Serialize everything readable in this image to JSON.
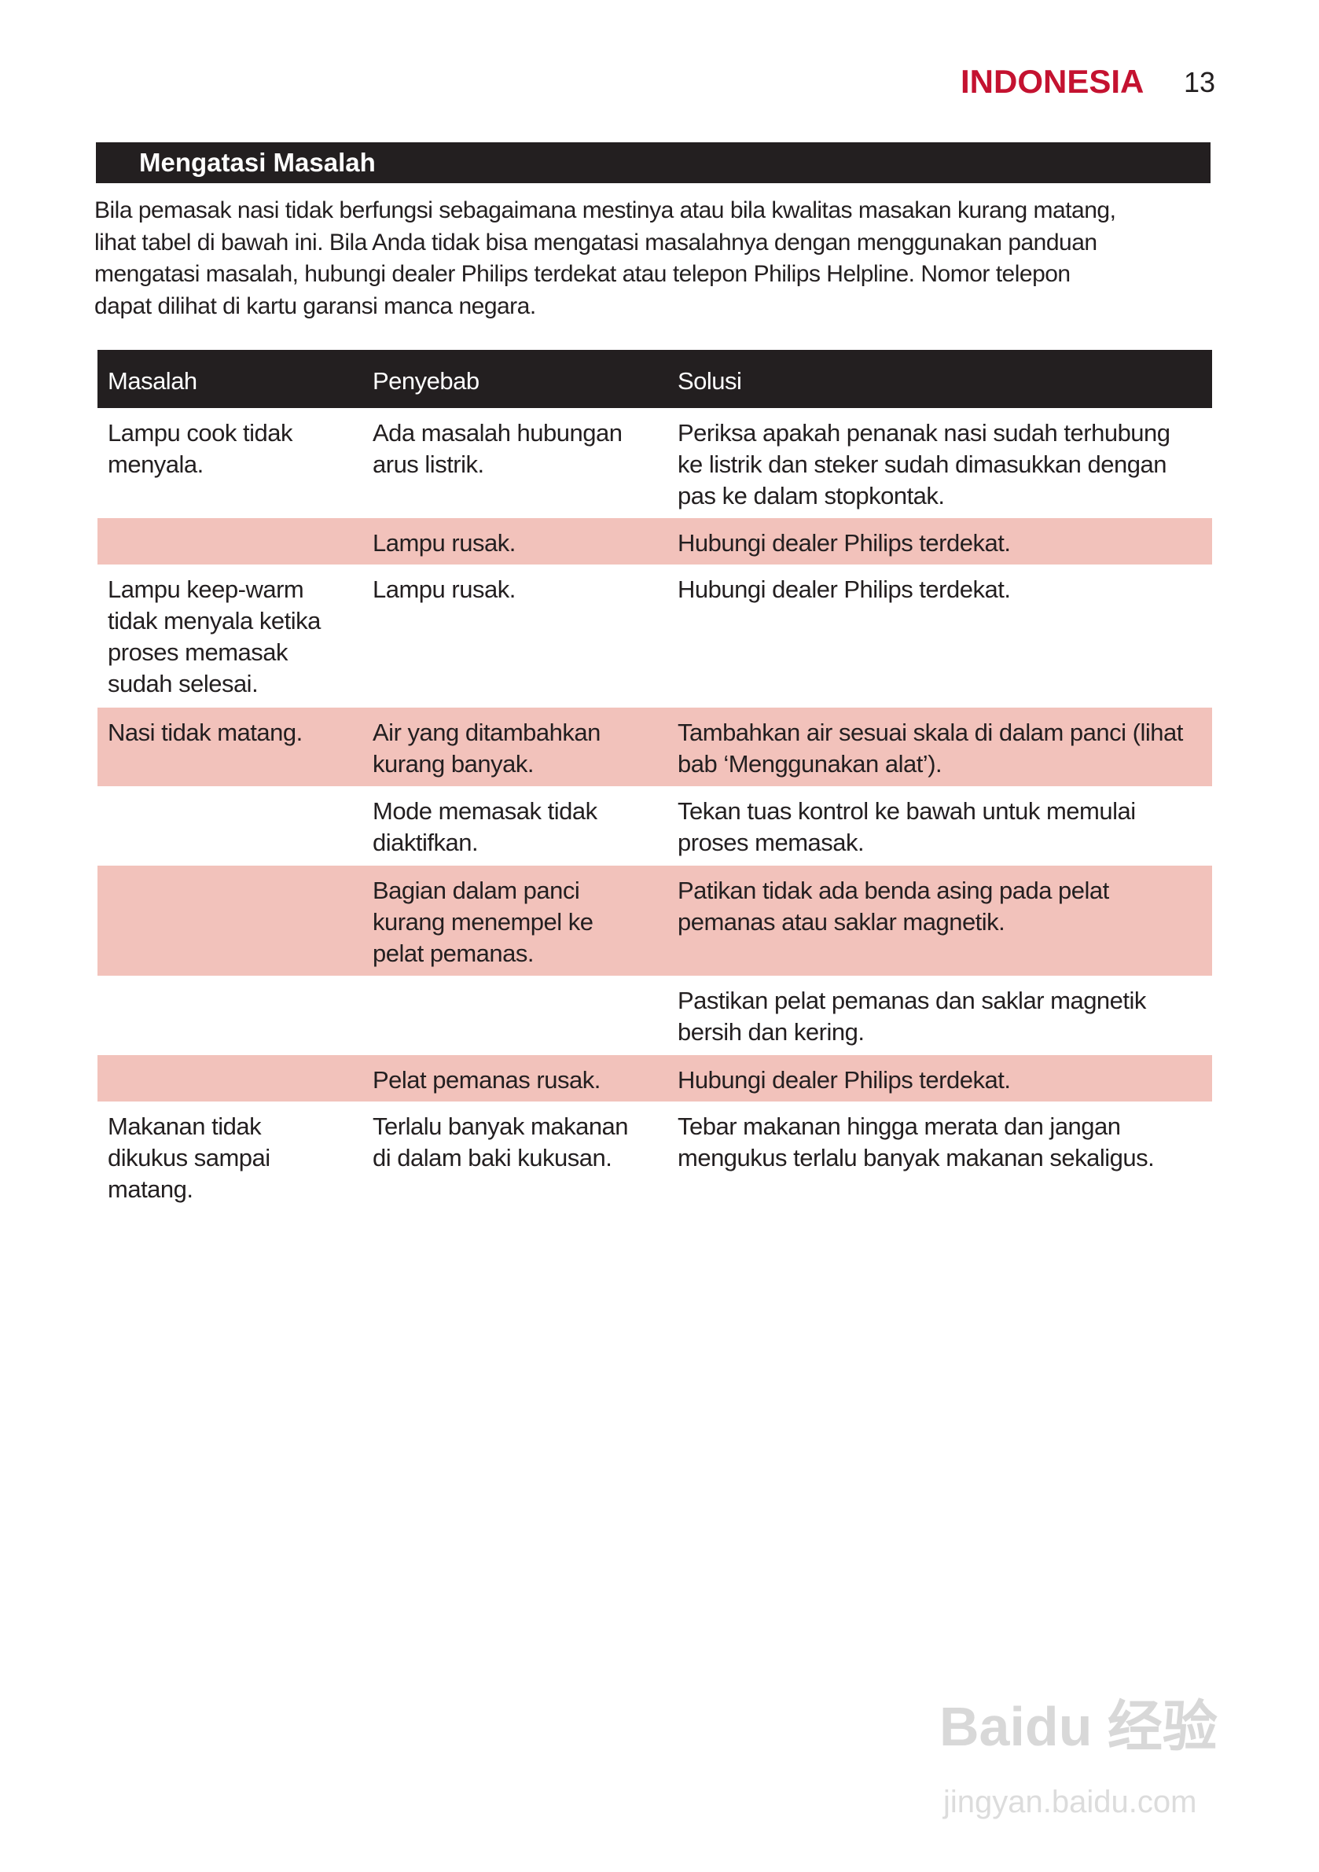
{
  "header": {
    "language": "INDONESIA",
    "page_number": "13"
  },
  "section": {
    "title": "Mengatasi Masalah",
    "intro": "Bila pemasak nasi tidak berfungsi sebagaimana mestinya atau bila kwalitas masakan kurang matang,\nlihat tabel di bawah ini. Bila Anda tidak bisa mengatasi masalahnya dengan menggunakan panduan\nmengatasi masalah, hubungi dealer Philips terdekat atau telepon Philips Helpline. Nomor telepon\ndapat dilihat di kartu garansi manca negara."
  },
  "table": {
    "headers": [
      "Masalah",
      "Penyebab",
      "Solusi"
    ],
    "rows": [
      {
        "masalah": "Lampu cook tidak\nmenyala.",
        "penyebab": "Ada masalah hubungan\narus listrik.",
        "solusi": "Periksa apakah penanak nasi sudah terhubung\nke listrik dan steker sudah dimasukkan dengan\npas ke dalam stopkontak."
      },
      {
        "masalah": "",
        "penyebab": "Lampu rusak.",
        "solusi": "Hubungi dealer Philips terdekat."
      },
      {
        "masalah": "Lampu keep-warm\ntidak menyala ketika\nproses memasak\nsudah selesai.",
        "penyebab": "Lampu rusak.",
        "solusi": "Hubungi dealer Philips terdekat."
      },
      {
        "masalah": "Nasi tidak matang.",
        "penyebab": "Air yang ditambahkan\nkurang banyak.",
        "solusi": "Tambahkan air sesuai skala di dalam panci (lihat\nbab ‘Menggunakan alat’)."
      },
      {
        "masalah": "",
        "penyebab": "Mode memasak tidak\ndiaktifkan.",
        "solusi": "Tekan tuas kontrol ke bawah untuk memulai\nproses memasak."
      },
      {
        "masalah": "",
        "penyebab": "Bagian dalam panci\nkurang menempel ke\npelat pemanas.",
        "solusi": "Patikan tidak ada benda asing pada pelat\npemanas atau saklar magnetik."
      },
      {
        "masalah": "",
        "penyebab": "",
        "solusi": "Pastikan pelat pemanas dan saklar magnetik\nbersih dan kering."
      },
      {
        "masalah": "",
        "penyebab": "Pelat pemanas rusak.",
        "solusi": "Hubungi dealer Philips terdekat."
      },
      {
        "masalah": "Makanan tidak\ndikukus sampai\nmatang.",
        "penyebab": "Terlalu banyak makanan\ndi dalam baki kukusan.",
        "solusi": "Tebar makanan hingga merata dan jangan\nmengukus terlalu banyak makanan sekaligus."
      }
    ]
  },
  "watermark": {
    "brand": "Baidu 经验",
    "url": "jingyan.baidu.com"
  },
  "colors": {
    "accent_red": "#c41230",
    "header_black": "#231f20",
    "row_highlight": "#f2c2bb"
  }
}
